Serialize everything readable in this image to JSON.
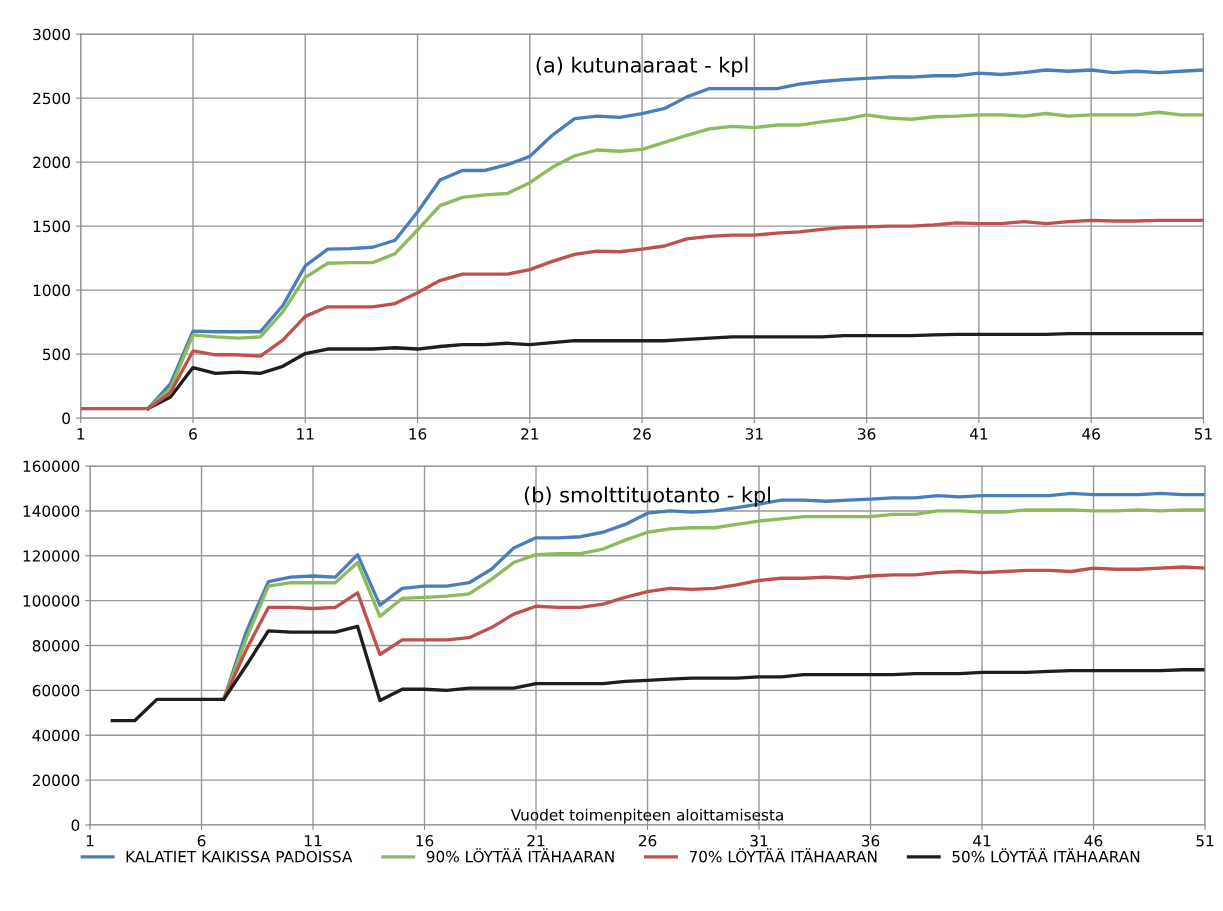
{
  "chart_data": [
    {
      "type": "line",
      "title": "(a) kutunaaraat - kpl",
      "x": [
        1,
        2,
        3,
        4,
        5,
        6,
        7,
        8,
        9,
        10,
        11,
        12,
        13,
        14,
        15,
        16,
        17,
        18,
        19,
        20,
        21,
        22,
        23,
        24,
        25,
        26,
        27,
        28,
        29,
        30,
        31,
        32,
        33,
        34,
        35,
        36,
        37,
        38,
        39,
        40,
        41,
        42,
        43,
        44,
        45,
        46,
        47,
        48,
        49,
        50,
        51
      ],
      "xlim": [
        1,
        51
      ],
      "xticks": [
        1,
        6,
        11,
        16,
        21,
        26,
        31,
        36,
        41,
        46,
        51
      ],
      "ylim": [
        0,
        3000
      ],
      "yticks": [
        0,
        500,
        1000,
        1500,
        2000,
        2500,
        3000
      ],
      "grid": true,
      "legend": false,
      "marker": "none",
      "line_style": "solid",
      "series": [
        {
          "color": "#4a7ebb",
          "values": [
            null,
            null,
            null,
            75,
            270,
            680,
            675,
            675,
            675,
            880,
            1190,
            1320,
            1325,
            1335,
            1390,
            1610,
            1860,
            1935,
            1935,
            1980,
            2045,
            2210,
            2340,
            2360,
            2350,
            2380,
            2420,
            2510,
            2575,
            2575,
            2575,
            2575,
            2610,
            2630,
            2645,
            2655,
            2665,
            2665,
            2675,
            2675,
            2695,
            2685,
            2700,
            2720,
            2710,
            2720,
            2700,
            2710,
            2700,
            2710,
            2720
          ]
        },
        {
          "color": "#8cbc5a",
          "values": [
            null,
            null,
            null,
            75,
            230,
            650,
            635,
            625,
            635,
            830,
            1100,
            1210,
            1215,
            1215,
            1285,
            1470,
            1660,
            1725,
            1745,
            1755,
            1840,
            1960,
            2050,
            2095,
            2085,
            2100,
            2155,
            2210,
            2260,
            2280,
            2270,
            2290,
            2290,
            2315,
            2335,
            2370,
            2345,
            2335,
            2355,
            2360,
            2370,
            2370,
            2360,
            2380,
            2360,
            2370,
            2370,
            2370,
            2390,
            2370,
            2370
          ]
        },
        {
          "color": "#1e1e1e",
          "values": [
            null,
            null,
            null,
            75,
            165,
            395,
            350,
            360,
            350,
            405,
            505,
            540,
            540,
            540,
            550,
            540,
            560,
            575,
            575,
            585,
            575,
            590,
            605,
            605,
            605,
            605,
            605,
            615,
            625,
            635,
            635,
            635,
            635,
            635,
            645,
            645,
            645,
            645,
            650,
            655,
            655,
            655,
            655,
            655,
            660,
            660,
            660,
            660,
            660,
            660,
            660
          ]
        },
        {
          "color": "#c0504d",
          "values": [
            75,
            75,
            75,
            75,
            200,
            525,
            495,
            495,
            485,
            610,
            795,
            870,
            870,
            870,
            895,
            980,
            1075,
            1125,
            1125,
            1125,
            1160,
            1225,
            1280,
            1305,
            1300,
            1320,
            1345,
            1400,
            1420,
            1430,
            1430,
            1445,
            1455,
            1475,
            1490,
            1495,
            1500,
            1500,
            1510,
            1525,
            1520,
            1520,
            1535,
            1520,
            1535,
            1545,
            1540,
            1540,
            1545,
            1545,
            1545
          ]
        }
      ]
    },
    {
      "type": "line",
      "title": "(b) smolttituotanto - kpl",
      "xlabel": "Vuodet toimenpiteen aloittamisesta",
      "x": [
        2,
        3,
        4,
        5,
        6,
        7,
        8,
        9,
        10,
        11,
        12,
        13,
        14,
        15,
        16,
        17,
        18,
        19,
        20,
        21,
        22,
        23,
        24,
        25,
        26,
        27,
        28,
        29,
        30,
        31,
        32,
        33,
        34,
        35,
        36,
        37,
        38,
        39,
        40,
        41,
        42,
        43,
        44,
        45,
        46,
        47,
        48,
        49,
        50,
        51
      ],
      "xlim": [
        1,
        51
      ],
      "xticks": [
        1,
        6,
        11,
        16,
        21,
        26,
        31,
        36,
        41,
        46,
        51
      ],
      "ylim": [
        0,
        160000
      ],
      "yticks": [
        0,
        20000,
        40000,
        60000,
        80000,
        100000,
        120000,
        140000,
        160000
      ],
      "grid": true,
      "legend": "bottom",
      "marker": "none",
      "line_style": "solid",
      "series": [
        {
          "name": "KALATIET KAIKISSA PADOISSA",
          "color": "#4a7ebb",
          "values": [
            null,
            null,
            null,
            null,
            null,
            56000,
            86000,
            108500,
            110500,
            111000,
            110500,
            120500,
            98000,
            105500,
            106500,
            106500,
            108000,
            114000,
            123500,
            128000,
            128000,
            128500,
            130500,
            134000,
            139000,
            140000,
            139500,
            140000,
            141500,
            143000,
            144800,
            144800,
            144300,
            144800,
            145300,
            145800,
            145800,
            146800,
            146300,
            146800,
            146800,
            146800,
            146800,
            147800,
            147300,
            147300,
            147300,
            147800,
            147300,
            147300
          ]
        },
        {
          "name": "90% LÖYTÄÄ ITÄHAARAN",
          "color": "#8cbc5a",
          "values": [
            null,
            null,
            null,
            null,
            null,
            56000,
            83000,
            106500,
            108000,
            108000,
            108000,
            117000,
            93000,
            101000,
            101500,
            102000,
            103000,
            109500,
            117000,
            120500,
            121000,
            121000,
            123000,
            127000,
            130500,
            132000,
            132500,
            132500,
            134000,
            135500,
            136500,
            137500,
            137500,
            137500,
            137500,
            138500,
            138500,
            140000,
            140000,
            139500,
            139500,
            140500,
            140500,
            140500,
            140000,
            140000,
            140500,
            140000,
            140500,
            140500
          ]
        },
        {
          "name": "70% LÖYTÄÄ ITÄHAARAN",
          "color": "#c0504d",
          "values": [
            null,
            null,
            null,
            null,
            null,
            56000,
            78000,
            97000,
            97000,
            96500,
            97000,
            103500,
            76000,
            82500,
            82500,
            82500,
            83500,
            88000,
            94000,
            97500,
            97000,
            97000,
            98500,
            101500,
            104000,
            105500,
            105000,
            105500,
            107000,
            109000,
            110000,
            110000,
            110500,
            110000,
            111000,
            111500,
            111500,
            112500,
            113000,
            112500,
            113000,
            113500,
            113500,
            113000,
            114500,
            114000,
            114000,
            114500,
            115000,
            114500
          ]
        },
        {
          "name": "50% LÖYTÄÄ ITÄHAARAN",
          "color": "#1e1e1e",
          "values": [
            46500,
            46500,
            56000,
            56000,
            56000,
            56000,
            71000,
            86500,
            86000,
            86000,
            86000,
            88500,
            55500,
            60500,
            60500,
            60000,
            61000,
            61000,
            61000,
            63000,
            63000,
            63000,
            63000,
            64000,
            64500,
            65000,
            65500,
            65500,
            65500,
            66000,
            66000,
            67000,
            67000,
            67000,
            67000,
            67000,
            67500,
            67500,
            67500,
            68000,
            68000,
            68000,
            68500,
            68800,
            68800,
            68800,
            68800,
            68800,
            69200,
            69200
          ]
        }
      ]
    }
  ]
}
